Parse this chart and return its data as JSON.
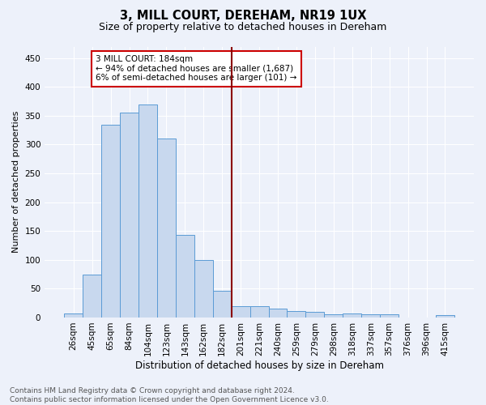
{
  "title": "3, MILL COURT, DEREHAM, NR19 1UX",
  "subtitle": "Size of property relative to detached houses in Dereham",
  "xlabel": "Distribution of detached houses by size in Dereham",
  "ylabel": "Number of detached properties",
  "bar_labels": [
    "26sqm",
    "45sqm",
    "65sqm",
    "84sqm",
    "104sqm",
    "123sqm",
    "143sqm",
    "162sqm",
    "182sqm",
    "201sqm",
    "221sqm",
    "240sqm",
    "259sqm",
    "279sqm",
    "298sqm",
    "318sqm",
    "337sqm",
    "357sqm",
    "376sqm",
    "396sqm",
    "415sqm"
  ],
  "bar_values": [
    7,
    75,
    335,
    355,
    370,
    310,
    143,
    100,
    47,
    19,
    19,
    15,
    11,
    10,
    5,
    7,
    6,
    5,
    0,
    0,
    4
  ],
  "bar_color": "#c8d8ee",
  "bar_edge_color": "#5b9bd5",
  "vline_x": 8.5,
  "vline_color": "#8b0000",
  "annotation_text": "3 MILL COURT: 184sqm\n← 94% of detached houses are smaller (1,687)\n6% of semi-detached houses are larger (101) →",
  "annotation_box_color": "#ffffff",
  "annotation_box_edge": "#cc0000",
  "annotation_fontsize": 7.5,
  "title_fontsize": 10.5,
  "subtitle_fontsize": 9,
  "xlabel_fontsize": 8.5,
  "ylabel_fontsize": 8,
  "tick_fontsize": 7.5,
  "footer_text": "Contains HM Land Registry data © Crown copyright and database right 2024.\nContains public sector information licensed under the Open Government Licence v3.0.",
  "bg_color": "#edf1fa",
  "grid_color": "#ffffff",
  "ylim": [
    0,
    470
  ],
  "yticks": [
    0,
    50,
    100,
    150,
    200,
    250,
    300,
    350,
    400,
    450
  ]
}
